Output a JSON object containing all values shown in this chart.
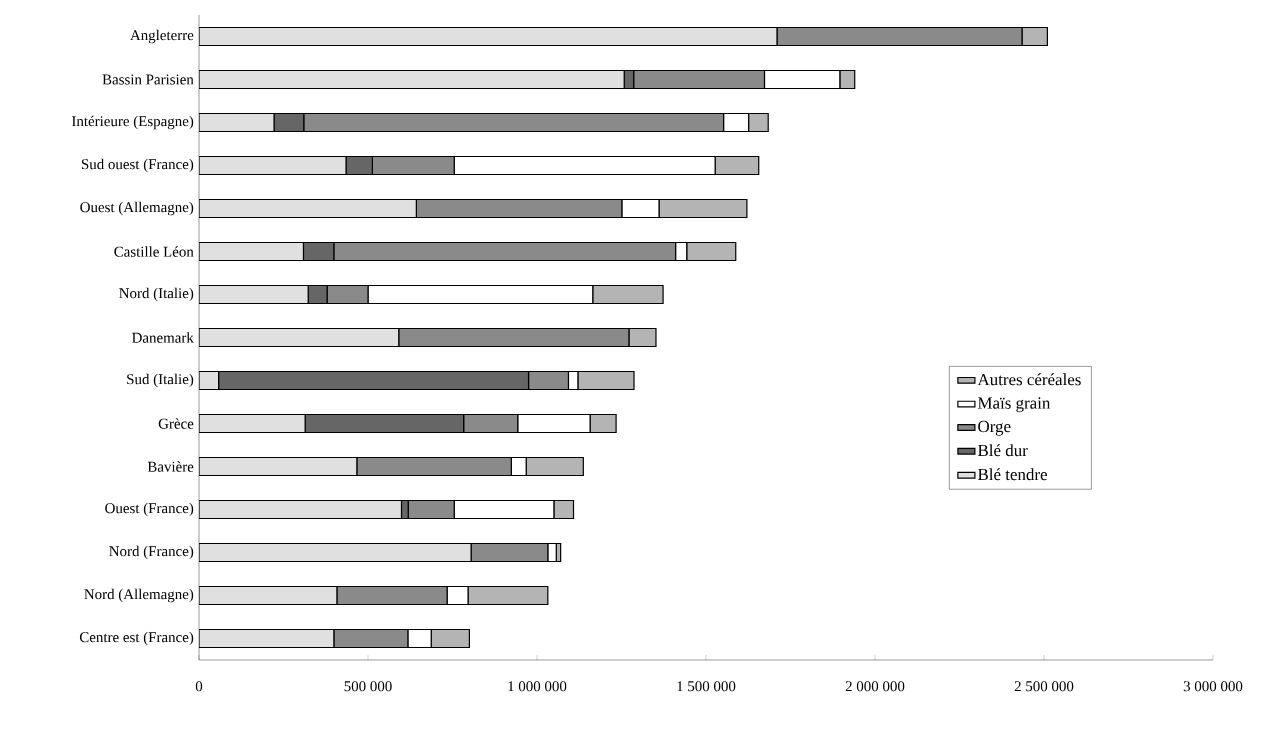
{
  "chart_data": {
    "type": "bar",
    "orientation": "horizontal",
    "stacked": true,
    "categories": [
      "Angleterre",
      "Bassin Parisien",
      "Intérieure (Espagne)",
      "Sud ouest (France)",
      "Ouest (Allemagne)",
      "Castille Léon",
      "Nord (Italie)",
      "Danemark",
      "Sud (Italie)",
      "Grèce",
      "Bavière",
      "Ouest (France)",
      "Nord (France)",
      "Nord (Allemagne)",
      "Centre est (France)"
    ],
    "series": [
      {
        "name": "Blé tendre",
        "color": "#e0e0e0",
        "values": [
          1710000,
          1258000,
          222000,
          435000,
          643000,
          309000,
          323000,
          591000,
          58000,
          314000,
          467000,
          599000,
          805000,
          408000,
          399000
        ]
      },
      {
        "name": "Blé dur",
        "color": "#666666",
        "values": [
          0,
          28000,
          88000,
          78000,
          0,
          90000,
          56000,
          0,
          917000,
          469000,
          0,
          20000,
          0,
          0,
          0
        ]
      },
      {
        "name": "Orge",
        "color": "#8a8a8a",
        "values": [
          725000,
          387000,
          1242000,
          242000,
          608000,
          1011000,
          121000,
          681000,
          118000,
          160000,
          457000,
          136000,
          227000,
          326000,
          219000
        ]
      },
      {
        "name": "Maïs grain",
        "color": "#ffffff",
        "values": [
          0,
          223000,
          74000,
          772000,
          110000,
          33000,
          665000,
          0,
          28000,
          214000,
          44000,
          295000,
          25000,
          62000,
          69000
        ]
      },
      {
        "name": "Autres céréales",
        "color": "#b4b4b4",
        "values": [
          75000,
          44000,
          58000,
          129000,
          260000,
          145000,
          208000,
          80000,
          166000,
          77000,
          169000,
          58000,
          13000,
          236000,
          113000
        ]
      }
    ],
    "xlim": [
      0,
      3000000
    ],
    "xticks": [
      0,
      {
        "value": 500000,
        "label": "500 000"
      },
      {
        "value": 1000000,
        "label": "1 000 000"
      },
      {
        "value": 1500000,
        "label": "1 500 000"
      },
      {
        "value": 2000000,
        "label": "2 000 000"
      },
      {
        "value": 2500000,
        "label": "2 500 000"
      },
      {
        "value": 3000000,
        "label": "3 000 000"
      }
    ],
    "legend": "right",
    "grid": false
  }
}
